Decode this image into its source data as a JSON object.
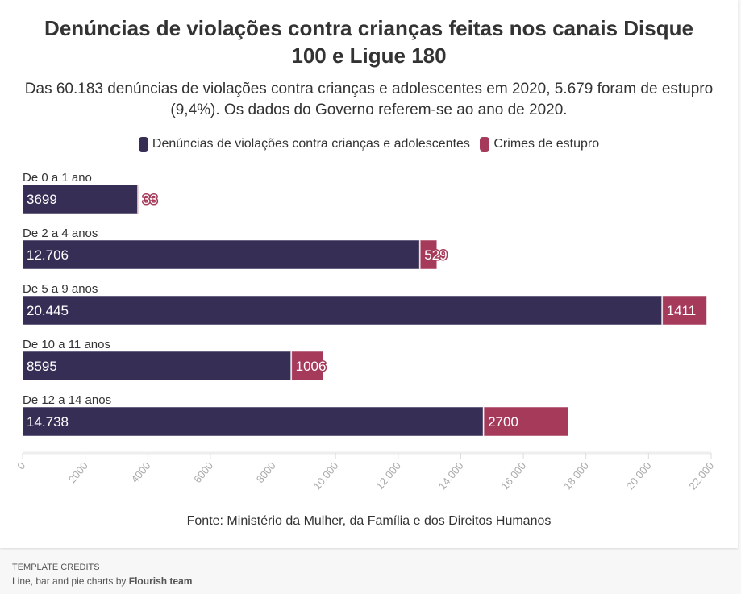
{
  "header": {
    "title": "Denúncias de violações contra crianças feitas nos canais Disque 100 e Ligue 180",
    "subtitle": "Das 60.183 denúncias de violações contra crianças e adolescentes em 2020, 5.679 foram de estupro (9,4%). Os dados do Governo referem-se ao ano de 2020."
  },
  "legend": [
    {
      "label": "Denúncias de violações contra crianças e adolescentes",
      "color": "#372e55"
    },
    {
      "label": "Crimes de estupro",
      "color": "#a53a5a"
    }
  ],
  "footer": {
    "source": "Fonte: Ministério da Mulher, da Família e dos Direitos Humanos",
    "credits_heading": "TEMPLATE CREDITS",
    "credits_prefix": "Line, bar and pie charts by ",
    "credits_author": "Flourish team"
  },
  "chart_data": {
    "type": "bar",
    "orientation": "horizontal",
    "stacked": true,
    "title": "Denúncias de violações contra crianças feitas nos canais Disque 100 e Ligue 180",
    "categories": [
      "De 0 a 1 ano",
      "De 2 a 4 anos",
      "De 5 a 9 anos",
      "De 10 a 11 anos",
      "De 12 a 14 anos"
    ],
    "series": [
      {
        "name": "Denúncias de violações contra crianças e adolescentes",
        "color": "#372e55",
        "values": [
          3699,
          12706,
          20445,
          8595,
          14738
        ],
        "labels": [
          "3699",
          "12.706",
          "20.445",
          "8595",
          "14.738"
        ]
      },
      {
        "name": "Crimes de estupro",
        "color": "#a53a5a",
        "values": [
          33,
          529,
          1411,
          1006,
          2700
        ],
        "labels": [
          "33",
          "529",
          "1411",
          "1006",
          "2700"
        ]
      }
    ],
    "xlim": [
      0,
      22000
    ],
    "xticks": [
      0,
      2000,
      4000,
      6000,
      8000,
      10000,
      12000,
      14000,
      16000,
      18000,
      20000,
      22000
    ],
    "xtick_labels": [
      "0",
      "2000",
      "4000",
      "6000",
      "8000",
      "10.000",
      "12.000",
      "14.000",
      "16.000",
      "18.000",
      "20.000",
      "22.000"
    ],
    "xlabel": "",
    "ylabel": "",
    "grid": false,
    "legend_position": "top-center"
  }
}
